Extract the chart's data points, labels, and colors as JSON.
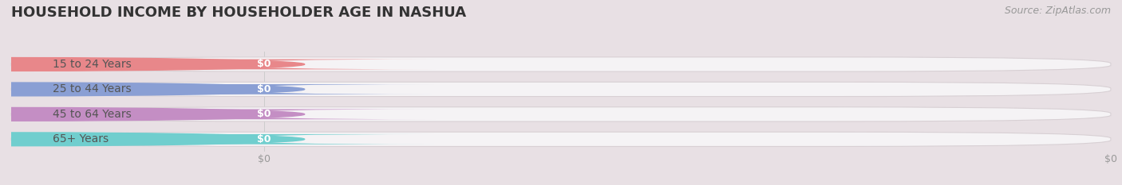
{
  "title": "HOUSEHOLD INCOME BY HOUSEHOLDER AGE IN NASHUA",
  "source": "Source: ZipAtlas.com",
  "categories": [
    "15 to 24 Years",
    "25 to 44 Years",
    "45 to 64 Years",
    "65+ Years"
  ],
  "values": [
    0,
    0,
    0,
    0
  ],
  "bar_colors": [
    "#e8878a",
    "#8a9fd4",
    "#c48ec4",
    "#70cece"
  ],
  "background_color": "#e8e0e4",
  "bar_bg_color": "#f5f3f5",
  "bar_border_color": "#d8d0d4",
  "title_fontsize": 13,
  "source_fontsize": 9,
  "label_fontsize": 10,
  "value_fontsize": 9,
  "tick_fontsize": 9,
  "tick_color": "#999999",
  "label_color": "#555555",
  "title_color": "#333333"
}
